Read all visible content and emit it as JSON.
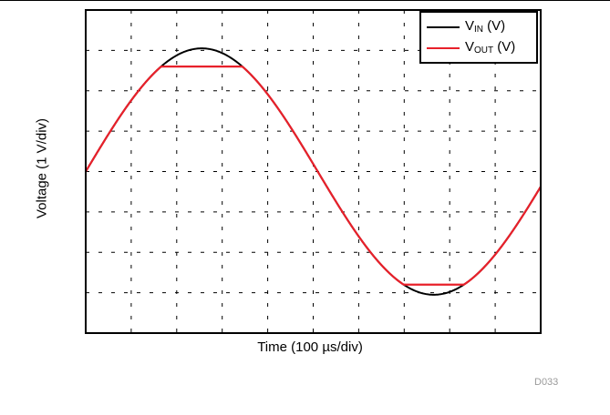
{
  "chart_data": {
    "type": "line",
    "title": "",
    "xlabel_prefix": "Time (100 ",
    "xlabel_unit": "µs/div)",
    "ylabel": "Voltage (1 V/div)",
    "x_divisions": 10,
    "y_divisions": 8,
    "xlim": [
      0,
      10
    ],
    "ylim": [
      -4,
      4
    ],
    "grid": true,
    "legend_position": "top-right",
    "series": [
      {
        "name_main": "V",
        "name_sub": "IN",
        "name_suffix": " (V)",
        "color": "#000000",
        "shape": "sine",
        "amplitude": 3.05,
        "period_divisions": 10.2,
        "phase_start_div": 0.0,
        "offset": 0.0
      },
      {
        "name_main": "V",
        "name_sub": "OUT",
        "name_suffix": " (V)",
        "color": "#e8202a",
        "shape": "clipped sine",
        "amplitude": 3.05,
        "period_divisions": 10.2,
        "phase_start_div": 0.0,
        "offset": 0.0,
        "clip_high": 2.6,
        "clip_low": -2.8
      }
    ]
  },
  "figure_id": "D033"
}
